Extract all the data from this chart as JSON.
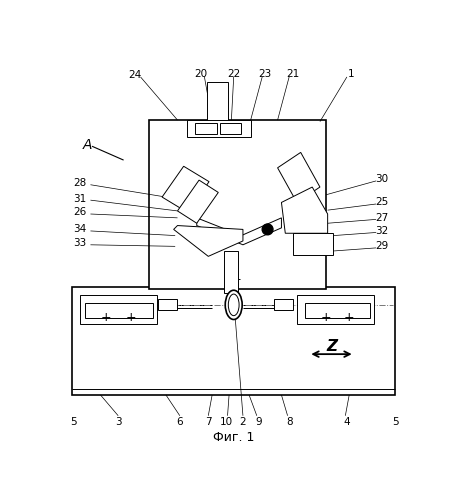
{
  "background_color": "#ffffff",
  "line_color": "#000000",
  "fig_caption": "Фиг. 1",
  "lw_main": 1.2,
  "lw_thin": 0.7,
  "label_fs": 7.5,
  "A_label": "A",
  "Z_label": "Z"
}
